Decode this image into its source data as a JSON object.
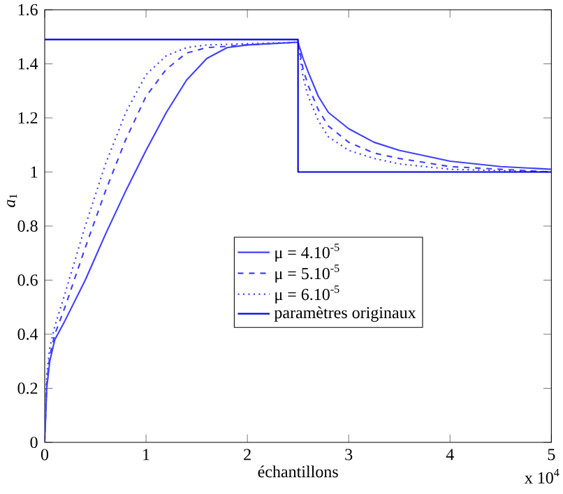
{
  "chart_data": {
    "type": "line",
    "xlabel": "échantillons",
    "ylabel": "*a*$_{1}$",
    "xlim": [
      0,
      5
    ],
    "ylim": [
      0,
      1.6
    ],
    "xticks": [
      0,
      1,
      2,
      3,
      4,
      5
    ],
    "yticks": [
      0,
      0.2,
      0.4,
      0.6,
      0.8,
      1,
      1.2,
      1.4,
      1.6
    ],
    "grid": false,
    "legend": "center",
    "marker": "none",
    "annotations": [
      "x 10$^{4}$"
    ],
    "series": [
      {
        "name": "μ = 4.10$^{-5}$",
        "color": "#4040ff",
        "line_style": "solid",
        "x": [
          0,
          0.02,
          0.05,
          0.1,
          0.2,
          0.4,
          0.6,
          0.8,
          1.0,
          1.2,
          1.4,
          1.6,
          1.8,
          2.0,
          2.5,
          2.55,
          2.6,
          2.7,
          2.8,
          3.0,
          3.25,
          3.5,
          4.0,
          4.5,
          5
        ],
        "values": [
          0,
          0.2,
          0.3,
          0.38,
          0.45,
          0.6,
          0.77,
          0.93,
          1.08,
          1.22,
          1.34,
          1.42,
          1.46,
          1.47,
          1.48,
          1.42,
          1.37,
          1.28,
          1.22,
          1.16,
          1.11,
          1.08,
          1.04,
          1.02,
          1.01
        ]
      },
      {
        "name": "μ = 5.10$^{-5}$",
        "color": "#4040ff",
        "line_style": "dashed",
        "x": [
          0,
          0.02,
          0.05,
          0.1,
          0.2,
          0.4,
          0.6,
          0.8,
          1.0,
          1.2,
          1.4,
          1.6,
          2.0,
          2.5,
          2.55,
          2.6,
          2.7,
          2.8,
          3.0,
          3.25,
          3.5,
          4.0,
          4.5,
          5
        ],
        "values": [
          0,
          0.22,
          0.32,
          0.4,
          0.5,
          0.72,
          0.93,
          1.12,
          1.28,
          1.38,
          1.44,
          1.46,
          1.47,
          1.48,
          1.38,
          1.32,
          1.23,
          1.17,
          1.11,
          1.07,
          1.05,
          1.02,
          1.01,
          1.0
        ]
      },
      {
        "name": "μ = 6.10$^{-5}$",
        "color": "#4040ff",
        "line_style": "dotted",
        "x": [
          0,
          0.02,
          0.05,
          0.1,
          0.2,
          0.4,
          0.6,
          0.8,
          1.0,
          1.2,
          1.4,
          1.6,
          2.5,
          2.55,
          2.6,
          2.7,
          2.8,
          3.0,
          3.25,
          3.5,
          4.0,
          5
        ],
        "values": [
          0,
          0.25,
          0.35,
          0.43,
          0.55,
          0.8,
          1.03,
          1.22,
          1.36,
          1.43,
          1.46,
          1.47,
          1.48,
          1.35,
          1.28,
          1.19,
          1.13,
          1.08,
          1.05,
          1.03,
          1.01,
          1.0
        ]
      },
      {
        "name": "paramètres originaux",
        "color": "#0000dd",
        "line_style": "solid",
        "x": [
          0,
          2.5,
          2.5,
          5
        ],
        "values": [
          1.49,
          1.49,
          1.0,
          1.0
        ]
      }
    ]
  }
}
